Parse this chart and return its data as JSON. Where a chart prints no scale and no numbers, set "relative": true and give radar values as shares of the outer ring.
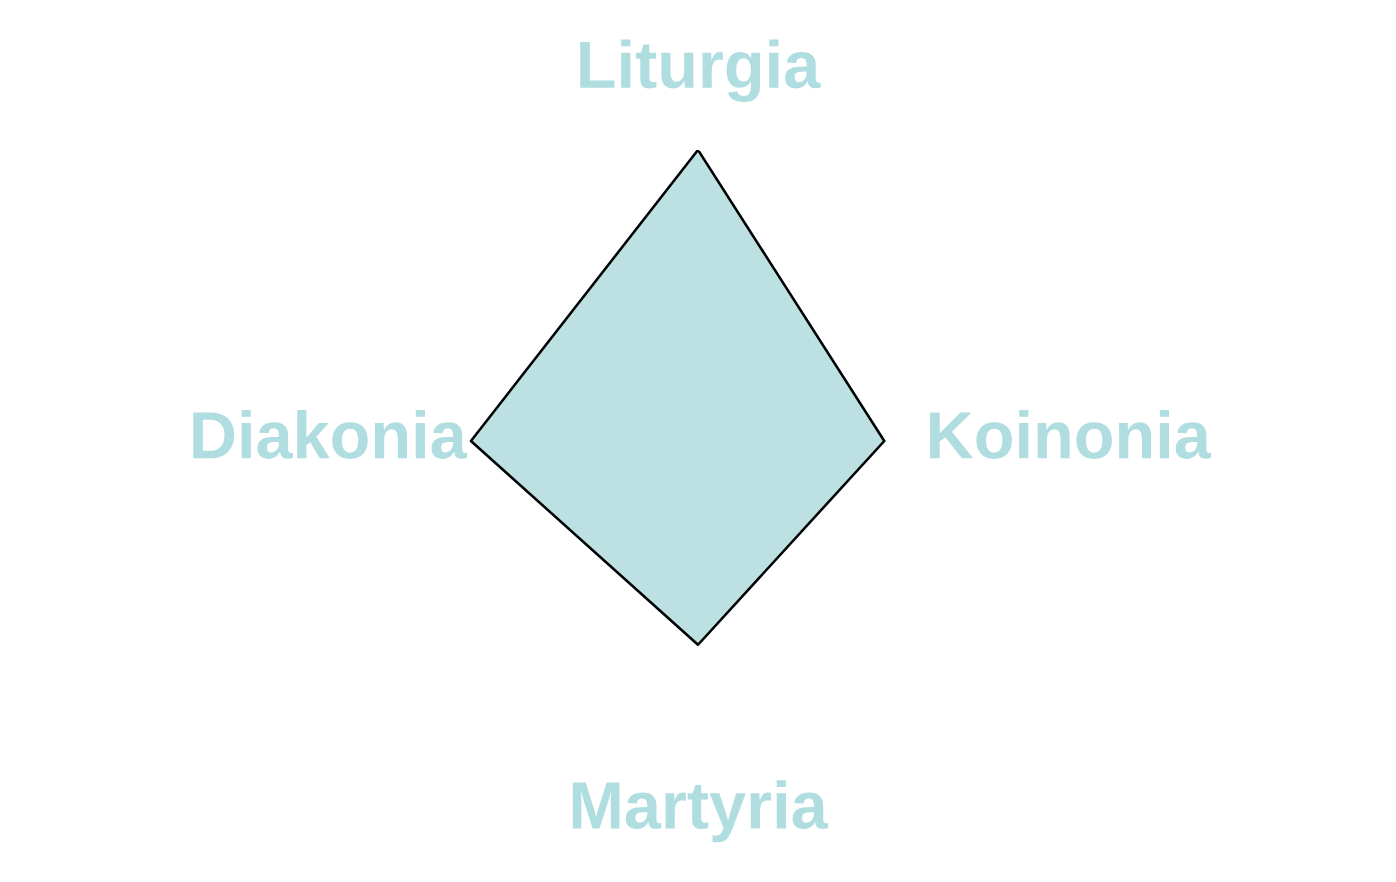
{
  "chart_data": {
    "type": "radar",
    "relative": true,
    "categories": [
      "Liturgia",
      "Koinonia",
      "Martyria",
      "Diakonia"
    ],
    "series": [
      {
        "color": "#bde0e3",
        "values": [
          1,
          0.64,
          0.7,
          0.78
        ]
      }
    ]
  }
}
